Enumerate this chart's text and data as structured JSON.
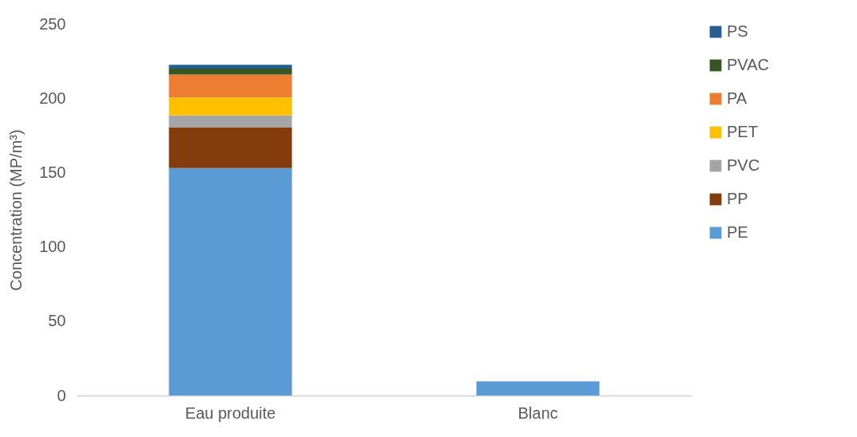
{
  "chart_data": {
    "type": "bar",
    "stacked": true,
    "ylabel": "Concentration (MP/m³)",
    "categories": [
      "Eau produite",
      "Blanc"
    ],
    "series": [
      {
        "name": "PE",
        "color": "#5b9bd5",
        "values": [
          153,
          9.5
        ]
      },
      {
        "name": "PP",
        "color": "#843c0c",
        "values": [
          27.5,
          0
        ]
      },
      {
        "name": "PVC",
        "color": "#a5a5a5",
        "values": [
          8,
          0
        ]
      },
      {
        "name": "PET",
        "color": "#ffc000",
        "values": [
          12,
          0
        ]
      },
      {
        "name": "PA",
        "color": "#ed7d31",
        "values": [
          15.5,
          0
        ]
      },
      {
        "name": "PVAC",
        "color": "#375623",
        "values": [
          4,
          0
        ]
      },
      {
        "name": "PS",
        "color": "#255e91",
        "values": [
          2.5,
          0
        ]
      }
    ],
    "ylim": [
      0,
      250
    ],
    "yticks": [
      0,
      50,
      100,
      150,
      200,
      250
    ],
    "legend": "right"
  }
}
